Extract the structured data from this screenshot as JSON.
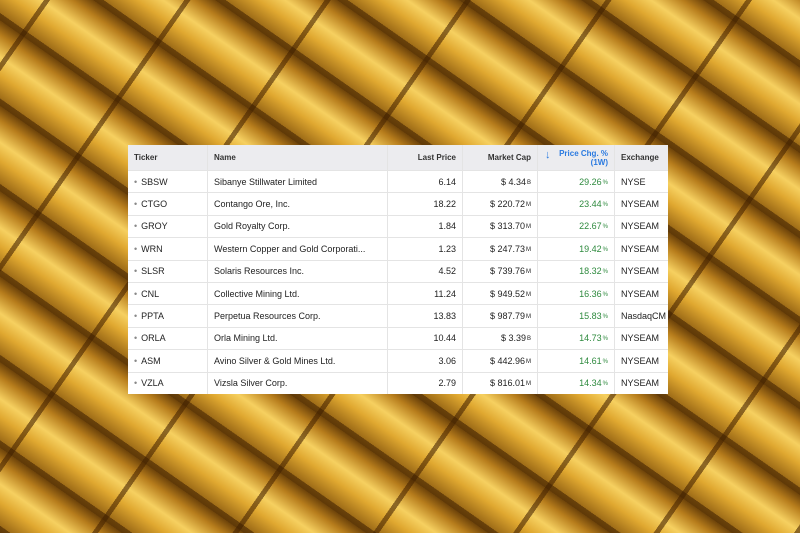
{
  "table": {
    "header": [
      "Ticker",
      "Name",
      "Last Price",
      "Market Cap",
      "Price Chg. %",
      "(1W)",
      "Exchange"
    ],
    "rows": [
      [
        "SBSW",
        "Sibanye Stillwater Limited",
        "6.14",
        {
          "amount": "$ 4.34",
          "unit": "B"
        },
        {
          "amount": "29.26",
          "unit": "%"
        },
        "NYSE"
      ],
      [
        "CTGO",
        "Contango Ore, Inc.",
        "18.22",
        {
          "amount": "$ 220.72",
          "unit": "M"
        },
        {
          "amount": "23.44",
          "unit": "%"
        },
        "NYSEAM"
      ],
      [
        "GROY",
        "Gold Royalty Corp.",
        "1.84",
        {
          "amount": "$ 313.70",
          "unit": "M"
        },
        {
          "amount": "22.67",
          "unit": "%"
        },
        "NYSEAM"
      ],
      [
        "WRN",
        "Western Copper and Gold Corporati...",
        "1.23",
        {
          "amount": "$ 247.73",
          "unit": "M"
        },
        {
          "amount": "19.42",
          "unit": "%"
        },
        "NYSEAM"
      ],
      [
        "SLSR",
        "Solaris Resources Inc.",
        "4.52",
        {
          "amount": "$ 739.76",
          "unit": "M"
        },
        {
          "amount": "18.32",
          "unit": "%"
        },
        "NYSEAM"
      ],
      [
        "CNL",
        "Collective Mining Ltd.",
        "11.24",
        {
          "amount": "$ 949.52",
          "unit": "M"
        },
        {
          "amount": "16.36",
          "unit": "%"
        },
        "NYSEAM"
      ],
      [
        "PPTA",
        "Perpetua Resources Corp.",
        "13.83",
        {
          "amount": "$ 987.79",
          "unit": "M"
        },
        {
          "amount": "15.83",
          "unit": "%"
        },
        "NasdaqCM"
      ],
      [
        "ORLA",
        "Orla Mining Ltd.",
        "10.44",
        {
          "amount": "$ 3.39",
          "unit": "B"
        },
        {
          "amount": "14.73",
          "unit": "%"
        },
        "NYSEAM"
      ],
      [
        "ASM",
        "Avino Silver & Gold Mines Ltd.",
        "3.06",
        {
          "amount": "$ 442.96",
          "unit": "M"
        },
        {
          "amount": "14.61",
          "unit": "%"
        },
        "NYSEAM"
      ],
      [
        "VZLA",
        "Vizsla Silver Corp.",
        "2.79",
        {
          "amount": "$ 816.01",
          "unit": "M"
        },
        {
          "amount": "14.34",
          "unit": "%"
        },
        "NYSEAM"
      ]
    ]
  }
}
